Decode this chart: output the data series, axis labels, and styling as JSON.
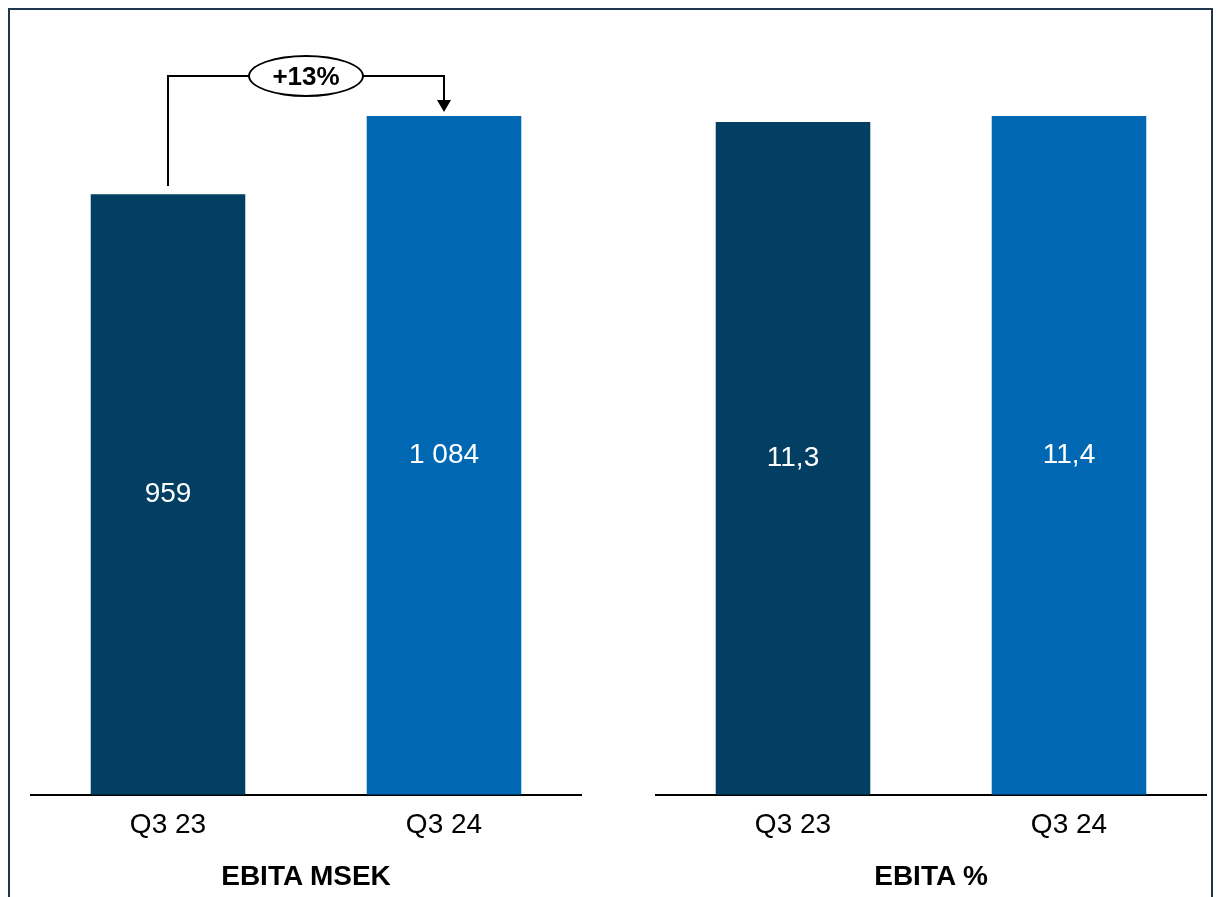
{
  "chart_data": [
    {
      "type": "bar",
      "xlabel": "EBITA MSEK",
      "categories": [
        "Q3 23",
        "Q3 24"
      ],
      "values": [
        959,
        1084
      ],
      "colors": [
        "#023f63",
        "#0068b3"
      ],
      "value_labels": [
        "959",
        "1 084"
      ],
      "annotations": [
        "+13%"
      ],
      "grid": false,
      "legend": false,
      "tick_labels": "x"
    },
    {
      "type": "bar",
      "xlabel": "EBITA %",
      "categories": [
        "Q3 23",
        "Q3 24"
      ],
      "values": [
        11.3,
        11.4
      ],
      "colors": [
        "#023f63",
        "#0068b3"
      ],
      "value_labels": [
        "11,3",
        "11,4"
      ],
      "grid": false,
      "legend": false,
      "tick_labels": "x"
    }
  ]
}
